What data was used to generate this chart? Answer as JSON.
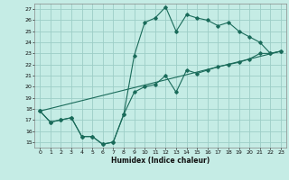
{
  "title": "",
  "xlabel": "Humidex (Indice chaleur)",
  "xlim": [
    -0.5,
    23.5
  ],
  "ylim": [
    14.5,
    27.5
  ],
  "xticks": [
    0,
    1,
    2,
    3,
    4,
    5,
    6,
    7,
    8,
    9,
    10,
    11,
    12,
    13,
    14,
    15,
    16,
    17,
    18,
    19,
    20,
    21,
    22,
    23
  ],
  "yticks": [
    15,
    16,
    17,
    18,
    19,
    20,
    21,
    22,
    23,
    24,
    25,
    26,
    27
  ],
  "bg_color": "#c5ece5",
  "grid_color": "#9dcec7",
  "line_color": "#1a6b5a",
  "line1_x": [
    0,
    1,
    2,
    3,
    4,
    5,
    6,
    7,
    8,
    9,
    10,
    11,
    12,
    13,
    14,
    15,
    16,
    17,
    18,
    19,
    20,
    21,
    22,
    23
  ],
  "line1_y": [
    17.8,
    16.8,
    17.0,
    17.2,
    15.5,
    15.5,
    14.8,
    15.0,
    17.5,
    22.8,
    25.8,
    26.2,
    27.2,
    25.0,
    26.5,
    26.2,
    26.0,
    25.5,
    25.8,
    25.0,
    24.5,
    24.0,
    23.0,
    23.2
  ],
  "line2_x": [
    0,
    1,
    2,
    3,
    4,
    5,
    6,
    7,
    8,
    9,
    10,
    11,
    12,
    13,
    14,
    15,
    16,
    17,
    18,
    19,
    20,
    21,
    22,
    23
  ],
  "line2_y": [
    17.8,
    16.8,
    17.0,
    17.2,
    15.5,
    15.5,
    14.8,
    15.0,
    17.5,
    19.5,
    20.0,
    20.2,
    21.0,
    19.5,
    21.5,
    21.2,
    21.5,
    21.8,
    22.0,
    22.2,
    22.5,
    23.0,
    23.0,
    23.2
  ],
  "line3_x": [
    0,
    23
  ],
  "line3_y": [
    17.8,
    23.2
  ]
}
